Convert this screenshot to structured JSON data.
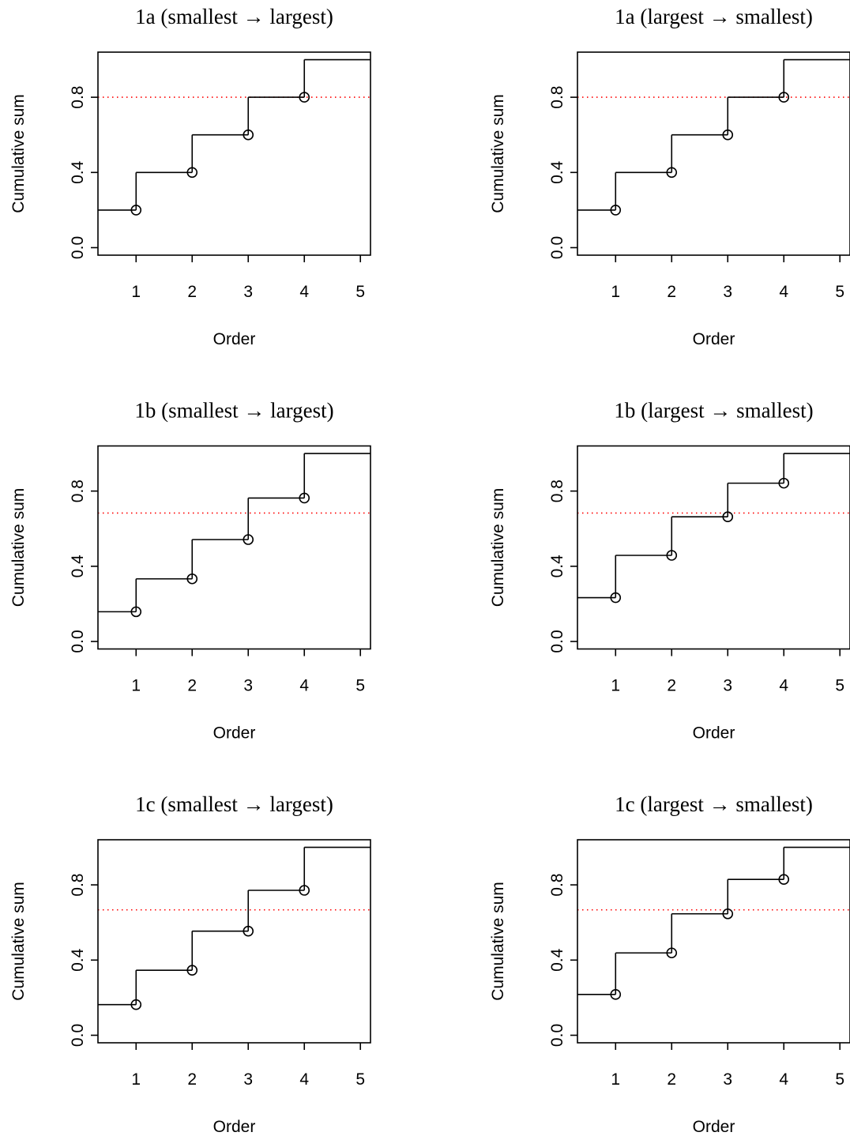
{
  "chart_data": [
    {
      "type": "step",
      "title": "1a (smallest → largest)",
      "x_label": "Order",
      "y_label": "Cumulative sum",
      "x": [
        1,
        2,
        3,
        4
      ],
      "values": [
        0.2,
        0.4,
        0.6,
        0.8
      ],
      "step_end": 1,
      "color": "#000000",
      "threshold": 0.8,
      "threshold_color": "#ff0000",
      "xlim": [
        0.32,
        5.18
      ],
      "ylim": [
        -0.04,
        1.04
      ],
      "xticks": [
        1,
        2,
        3,
        4,
        5
      ],
      "yticks": [
        {
          "value": 0,
          "label": "0.0"
        },
        0.4,
        0.8
      ]
    },
    {
      "type": "step",
      "title": "1a (largest → smallest)",
      "x_label": "Order",
      "y_label": "Cumulative sum",
      "x": [
        1,
        2,
        3,
        4
      ],
      "values": [
        0.2,
        0.4,
        0.6,
        0.8
      ],
      "step_end": 1,
      "color": "#000000",
      "threshold": 0.8,
      "threshold_color": "#ff0000",
      "xlim": [
        0.32,
        5.18
      ],
      "ylim": [
        -0.04,
        1.04
      ],
      "xticks": [
        1,
        2,
        3,
        4,
        5
      ],
      "yticks": [
        {
          "value": 0,
          "label": "0.0"
        },
        0.4,
        0.8
      ]
    },
    {
      "type": "step",
      "title": "1b (smallest → largest)",
      "x_label": "Order",
      "y_label": "Cumulative sum",
      "x": [
        1,
        2,
        3,
        4
      ],
      "values": [
        0.158,
        0.333,
        0.542,
        0.763
      ],
      "step_end": 1,
      "color": "#000000",
      "threshold": 0.683,
      "threshold_color": "#ff0000",
      "xlim": [
        0.32,
        5.18
      ],
      "ylim": [
        -0.04,
        1.04
      ],
      "xticks": [
        1,
        2,
        3,
        4,
        5
      ],
      "yticks": [
        {
          "value": 0,
          "label": "0.0"
        },
        0.4,
        0.8
      ]
    },
    {
      "type": "step",
      "title": "1b (largest → smallest)",
      "x_label": "Order",
      "y_label": "Cumulative sum",
      "x": [
        1,
        2,
        3,
        4
      ],
      "values": [
        0.233,
        0.458,
        0.663,
        0.842
      ],
      "step_end": 1,
      "color": "#000000",
      "threshold": 0.683,
      "threshold_color": "#ff0000",
      "xlim": [
        0.32,
        5.18
      ],
      "ylim": [
        -0.04,
        1.04
      ],
      "xticks": [
        1,
        2,
        3,
        4,
        5
      ],
      "yticks": [
        {
          "value": 0,
          "label": "0.0"
        },
        0.4,
        0.8
      ]
    },
    {
      "type": "step",
      "title": "1c (smallest → largest)",
      "x_label": "Order",
      "y_label": "Cumulative sum",
      "x": [
        1,
        2,
        3,
        4
      ],
      "values": [
        0.163,
        0.346,
        0.554,
        0.771
      ],
      "step_end": 1,
      "color": "#000000",
      "threshold": 0.667,
      "threshold_color": "#ff0000",
      "xlim": [
        0.32,
        5.18
      ],
      "ylim": [
        -0.04,
        1.04
      ],
      "xticks": [
        1,
        2,
        3,
        4,
        5
      ],
      "yticks": [
        {
          "value": 0,
          "label": "0.0"
        },
        0.4,
        0.8
      ]
    },
    {
      "type": "step",
      "title": "1c (largest → smallest)",
      "x_label": "Order",
      "y_label": "Cumulative sum",
      "x": [
        1,
        2,
        3,
        4
      ],
      "values": [
        0.217,
        0.438,
        0.646,
        0.829
      ],
      "step_end": 1,
      "color": "#000000",
      "threshold": 0.667,
      "threshold_color": "#ff0000",
      "xlim": [
        0.32,
        5.18
      ],
      "ylim": [
        -0.04,
        1.04
      ],
      "xticks": [
        1,
        2,
        3,
        4,
        5
      ],
      "yticks": [
        {
          "value": 0,
          "label": "0.0"
        },
        0.4,
        0.8
      ]
    }
  ]
}
